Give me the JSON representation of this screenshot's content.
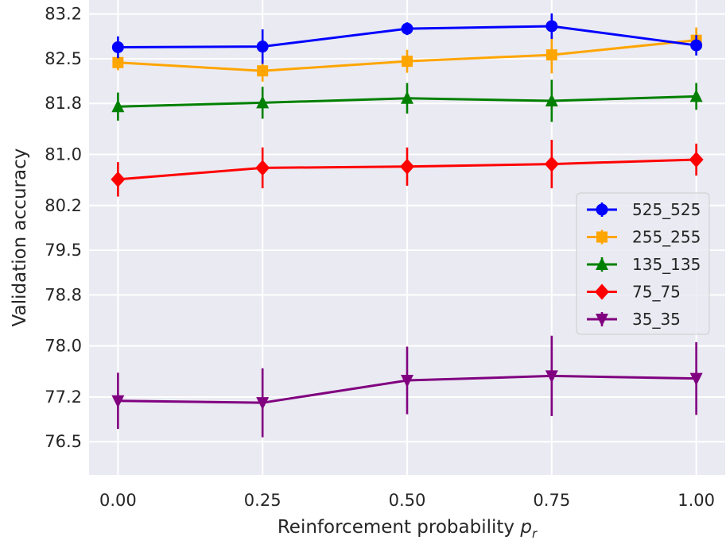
{
  "chart_data": {
    "type": "line",
    "title": "",
    "xlabel": "Reinforcement probability",
    "xlabel_symbol": "p",
    "xlabel_subscript": "r",
    "ylabel": "Validation accuracy",
    "x": [
      0.0,
      0.25,
      0.5,
      0.75,
      1.0
    ],
    "x_tick_labels": [
      "0.00",
      "0.25",
      "0.50",
      "0.75",
      "1.00"
    ],
    "xlim": [
      -0.05,
      1.05
    ],
    "y_tick_values": [
      76.5,
      77.2,
      78.0,
      78.8,
      79.5,
      80.2,
      81.0,
      81.8,
      82.5,
      83.2
    ],
    "y_tick_labels": [
      "76.5",
      "77.2",
      "78.0",
      "78.8",
      "79.5",
      "80.2",
      "81.0",
      "81.8",
      "82.5",
      "83.2"
    ],
    "ylim": [
      75.98,
      83.42
    ],
    "grid": true,
    "legend_position": "center-right",
    "series": [
      {
        "name": "525_525",
        "color": "#0000ff",
        "marker": "circle",
        "values": [
          82.68,
          82.69,
          82.97,
          83.01,
          82.71
        ],
        "errors": [
          0.17,
          0.27,
          0.1,
          0.2,
          0.16
        ]
      },
      {
        "name": "255_255",
        "color": "#ffa500",
        "marker": "square",
        "values": [
          82.44,
          82.31,
          82.46,
          82.56,
          82.79
        ],
        "errors": [
          0.12,
          0.17,
          0.18,
          0.29,
          0.2
        ]
      },
      {
        "name": "135_135",
        "color": "#008000",
        "marker": "triangle-up",
        "values": [
          81.75,
          81.81,
          81.88,
          81.84,
          81.91
        ],
        "errors": [
          0.22,
          0.25,
          0.24,
          0.33,
          0.21
        ]
      },
      {
        "name": "75_75",
        "color": "#ff0000",
        "marker": "diamond",
        "values": [
          80.61,
          80.79,
          80.81,
          80.85,
          80.92
        ],
        "errors": [
          0.27,
          0.32,
          0.3,
          0.38,
          0.25
        ]
      },
      {
        "name": "35_35",
        "color": "#800080",
        "marker": "triangle-down",
        "values": [
          77.14,
          77.11,
          77.46,
          77.53,
          77.49
        ],
        "errors": [
          0.44,
          0.54,
          0.53,
          0.63,
          0.57
        ]
      }
    ]
  }
}
